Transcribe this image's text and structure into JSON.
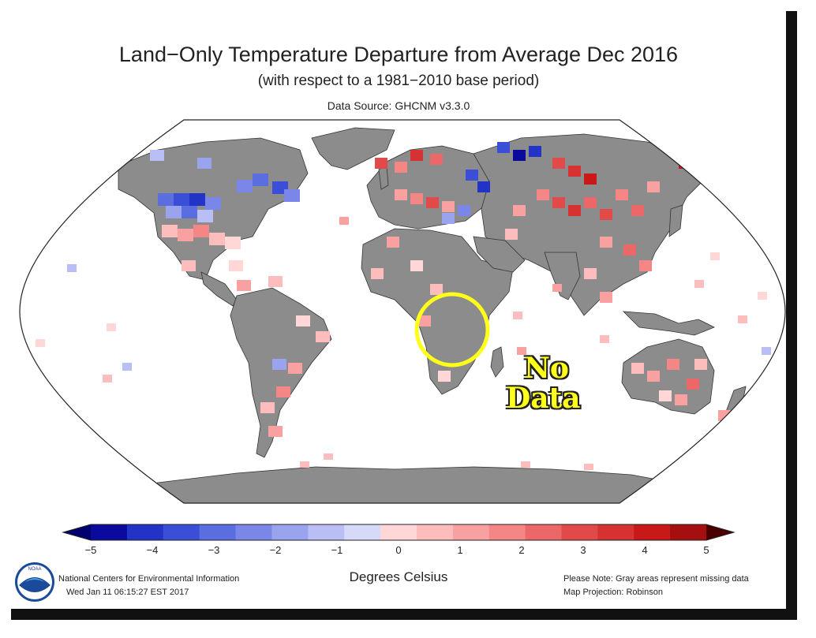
{
  "title": "Land−Only Temperature Departure from Average Dec 2016",
  "subtitle": "(with respect to a 1981−2010 base period)",
  "source": "Data Source: GHCNM v3.3.0",
  "colorbar": {
    "ticks": [
      "−5",
      "−4",
      "−3",
      "−2",
      "−1",
      "0",
      "1",
      "2",
      "3",
      "4",
      "5"
    ],
    "unit": "Degrees Celsius",
    "colors": [
      "#0a0a9c",
      "#2233c8",
      "#3a4ed8",
      "#5a6ee0",
      "#7b87e8",
      "#9aa3ee",
      "#b9bef4",
      "#d6d9f8",
      "#ffd7d7",
      "#fdbdbd",
      "#f9a1a1",
      "#f48686",
      "#ec6868",
      "#e24a4a",
      "#d63232",
      "#c81818",
      "#a50f0f"
    ],
    "arrow_low": "#00006e",
    "arrow_high": "#4a0000"
  },
  "footer": {
    "org": "National Centers for Environmental Information",
    "timestamp": "Wed Jan 11 06:15:27 EST 2017",
    "note": "Please Note: Gray areas represent missing data",
    "projection": "Map Projection: Robinson"
  },
  "logo": {
    "text": "NOAA"
  },
  "annotation": {
    "line1": "No",
    "line2": "Data",
    "highlight_color": "#ffff1a"
  },
  "map_colors": {
    "missing": "#8c8c8c",
    "ocean": "#ffffff",
    "border": "#111111"
  }
}
